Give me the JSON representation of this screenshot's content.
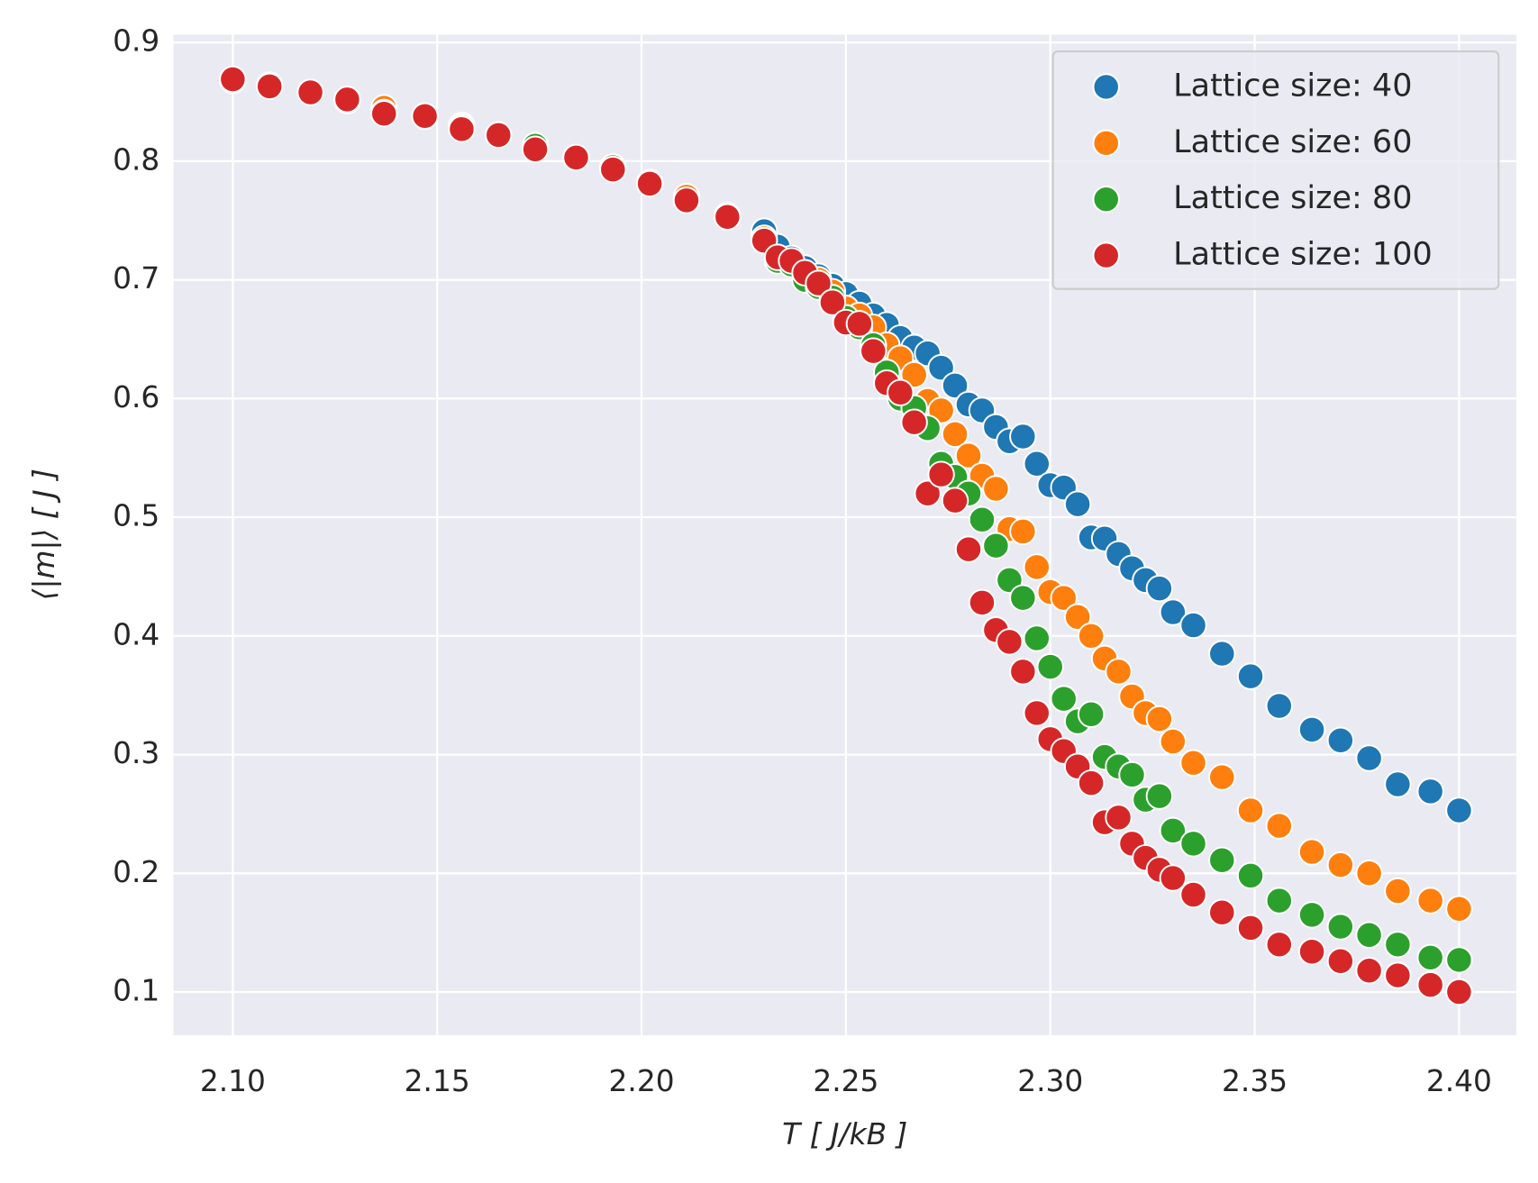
{
  "chart_data": {
    "type": "scatter",
    "x_label": "T [ J/kB ]",
    "y_label": "⟨|m|⟩ [ J ]",
    "x": [
      2.1,
      2.109,
      2.119,
      2.128,
      2.137,
      2.147,
      2.156,
      2.165,
      2.174,
      2.184,
      2.193,
      2.202,
      2.211,
      2.221,
      2.23,
      2.2333,
      2.2367,
      2.24,
      2.2433,
      2.2467,
      2.25,
      2.2533,
      2.2567,
      2.26,
      2.2633,
      2.2667,
      2.27,
      2.2733,
      2.2767,
      2.28,
      2.2833,
      2.2867,
      2.29,
      2.2933,
      2.2967,
      2.3,
      2.3033,
      2.3067,
      2.31,
      2.3133,
      2.3167,
      2.32,
      2.3233,
      2.3267,
      2.33,
      2.335,
      2.342,
      2.349,
      2.356,
      2.364,
      2.371,
      2.378,
      2.385,
      2.393,
      2.4
    ],
    "series": [
      {
        "name": "Lattice size: 40",
        "color": "#1f77b4",
        "values": [
          0.868,
          0.864,
          0.858,
          0.851,
          0.843,
          0.838,
          0.83,
          0.822,
          0.811,
          0.803,
          0.794,
          0.781,
          0.768,
          0.754,
          0.741,
          0.728,
          0.718,
          0.71,
          0.703,
          0.695,
          0.688,
          0.68,
          0.67,
          0.662,
          0.651,
          0.643,
          0.638,
          0.626,
          0.611,
          0.595,
          0.59,
          0.576,
          0.564,
          0.568,
          0.545,
          0.527,
          0.525,
          0.511,
          0.483,
          0.482,
          0.469,
          0.457,
          0.447,
          0.44,
          0.42,
          0.409,
          0.385,
          0.366,
          0.341,
          0.321,
          0.312,
          0.297,
          0.275,
          0.269,
          0.253
        ]
      },
      {
        "name": "Lattice size: 60",
        "color": "#ff7f0e",
        "values": [
          0.868,
          0.864,
          0.858,
          0.852,
          0.845,
          0.838,
          0.829,
          0.822,
          0.811,
          0.803,
          0.794,
          0.782,
          0.77,
          0.753,
          0.735,
          0.717,
          0.715,
          0.705,
          0.7,
          0.69,
          0.676,
          0.67,
          0.66,
          0.645,
          0.634,
          0.62,
          0.598,
          0.59,
          0.57,
          0.552,
          0.535,
          0.524,
          0.49,
          0.488,
          0.458,
          0.437,
          0.432,
          0.416,
          0.4,
          0.381,
          0.37,
          0.349,
          0.335,
          0.33,
          0.311,
          0.293,
          0.281,
          0.253,
          0.24,
          0.218,
          0.207,
          0.2,
          0.185,
          0.177,
          0.17
        ]
      },
      {
        "name": "Lattice size: 80",
        "color": "#2ca02c",
        "values": [
          0.868,
          0.863,
          0.858,
          0.852,
          0.841,
          0.838,
          0.828,
          0.822,
          0.813,
          0.803,
          0.795,
          0.781,
          0.767,
          0.753,
          0.733,
          0.716,
          0.713,
          0.7,
          0.694,
          0.685,
          0.668,
          0.66,
          0.645,
          0.622,
          0.6,
          0.592,
          0.575,
          0.545,
          0.534,
          0.52,
          0.498,
          0.476,
          0.447,
          0.432,
          0.398,
          0.374,
          0.347,
          0.328,
          0.334,
          0.298,
          0.29,
          0.283,
          0.262,
          0.265,
          0.236,
          0.225,
          0.211,
          0.198,
          0.177,
          0.165,
          0.155,
          0.148,
          0.14,
          0.129,
          0.127
        ]
      },
      {
        "name": "Lattice size: 100",
        "color": "#d62728",
        "values": [
          0.869,
          0.863,
          0.858,
          0.852,
          0.84,
          0.838,
          0.827,
          0.822,
          0.81,
          0.803,
          0.793,
          0.781,
          0.767,
          0.753,
          0.733,
          0.719,
          0.716,
          0.706,
          0.697,
          0.681,
          0.664,
          0.663,
          0.64,
          0.613,
          0.605,
          0.58,
          0.52,
          0.536,
          0.514,
          0.473,
          0.428,
          0.405,
          0.395,
          0.37,
          0.335,
          0.313,
          0.303,
          0.29,
          0.276,
          0.243,
          0.247,
          0.225,
          0.213,
          0.203,
          0.196,
          0.182,
          0.167,
          0.154,
          0.14,
          0.134,
          0.126,
          0.118,
          0.114,
          0.106,
          0.1
        ]
      }
    ],
    "xlim": [
      2.0855,
      2.414
    ],
    "ylim": [
      0.0635,
      0.9066
    ],
    "xticks": [
      {
        "value": 2.1,
        "label": "2.10"
      },
      {
        "value": 2.15,
        "label": "2.15"
      },
      {
        "value": 2.2,
        "label": "2.20"
      },
      {
        "value": 2.25,
        "label": "2.25"
      },
      {
        "value": 2.3,
        "label": "2.30"
      },
      {
        "value": 2.35,
        "label": "2.35"
      },
      {
        "value": 2.4,
        "label": "2.40"
      }
    ],
    "yticks": [
      0.1,
      0.2,
      0.3,
      0.4,
      0.5,
      0.6,
      0.7,
      0.8,
      0.9
    ],
    "grid": true,
    "legend": "upper right"
  }
}
